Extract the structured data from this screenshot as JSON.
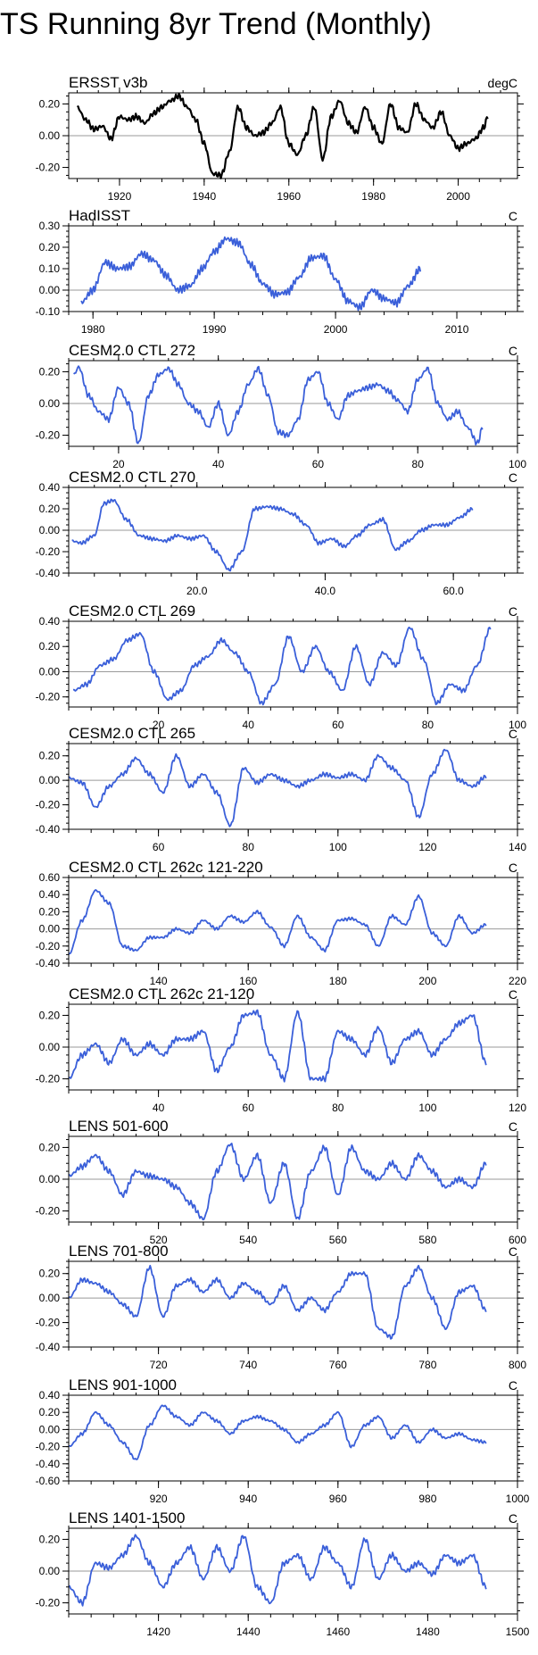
{
  "figure": {
    "title": "TS Running 8yr Trend (Monthly)"
  },
  "colors": {
    "obs_line": "#000000",
    "model_line": "#3a5fd9",
    "zero_line": "#999999",
    "frame": "#000000"
  },
  "chart_data": [
    {
      "type": "line",
      "title": "ERSST v3b",
      "units": "degC",
      "color": "obs",
      "xlim": [
        1908,
        2014
      ],
      "ylim": [
        -0.27,
        0.27
      ],
      "xticks": [
        1920,
        1940,
        1960,
        1980,
        2000
      ],
      "xtick_labels": [
        "1920",
        "1940",
        "1960",
        "1980",
        "2000"
      ],
      "yticks": [
        0.2,
        0.0,
        -0.2
      ],
      "ytick_labels": [
        "0.20",
        "0.00",
        "-0.20"
      ],
      "x_start": 1910,
      "x_end": 2007,
      "x": [
        1910,
        1912,
        1914,
        1916,
        1918,
        1920,
        1922,
        1924,
        1926,
        1928,
        1930,
        1932,
        1934,
        1936,
        1938,
        1940,
        1942,
        1944,
        1946,
        1948,
        1950,
        1952,
        1954,
        1956,
        1958,
        1960,
        1962,
        1964,
        1966,
        1968,
        1970,
        1972,
        1974,
        1976,
        1978,
        1980,
        1982,
        1984,
        1986,
        1988,
        1990,
        1992,
        1994,
        1996,
        1998,
        2000,
        2002,
        2004,
        2006,
        2007
      ],
      "y": [
        0.18,
        0.1,
        0.04,
        0.06,
        -0.02,
        0.12,
        0.1,
        0.12,
        0.08,
        0.14,
        0.18,
        0.22,
        0.25,
        0.18,
        0.1,
        -0.05,
        -0.24,
        -0.25,
        -0.1,
        0.18,
        0.05,
        0.0,
        0.02,
        0.08,
        0.18,
        -0.05,
        -0.12,
        0.0,
        0.18,
        -0.15,
        0.12,
        0.22,
        0.08,
        0.02,
        0.18,
        0.05,
        -0.05,
        0.2,
        0.05,
        0.02,
        0.2,
        0.1,
        0.05,
        0.15,
        0.0,
        -0.08,
        -0.05,
        -0.02,
        0.05,
        0.12
      ]
    },
    {
      "type": "line",
      "title": "HadISST",
      "units": "C",
      "color": "model",
      "xlim": [
        1978,
        2015
      ],
      "ylim": [
        -0.1,
        0.3
      ],
      "xticks": [
        1980,
        1990,
        2000,
        2010
      ],
      "xtick_labels": [
        "1980",
        "1990",
        "2000",
        "2010"
      ],
      "yticks": [
        0.3,
        0.2,
        0.1,
        0.0,
        -0.1
      ],
      "ytick_labels": [
        "0.30",
        "0.20",
        "0.10",
        "0.00",
        "-0.10"
      ],
      "x_start": 1979,
      "x_end": 2007,
      "x": [
        1979,
        1980,
        1981,
        1982,
        1983,
        1984,
        1985,
        1986,
        1987,
        1988,
        1989,
        1990,
        1991,
        1992,
        1993,
        1994,
        1995,
        1996,
        1997,
        1998,
        1999,
        2000,
        2001,
        2002,
        2003,
        2004,
        2005,
        2006,
        2007
      ],
      "y": [
        -0.06,
        0.0,
        0.13,
        0.1,
        0.11,
        0.17,
        0.14,
        0.07,
        0.0,
        0.02,
        0.1,
        0.18,
        0.24,
        0.22,
        0.12,
        0.03,
        -0.02,
        -0.01,
        0.06,
        0.15,
        0.16,
        0.05,
        -0.05,
        -0.08,
        0.0,
        -0.04,
        -0.06,
        0.02,
        0.1
      ]
    },
    {
      "type": "line",
      "title": "CESM2.0 CTL 272",
      "units": "C",
      "color": "model",
      "xlim": [
        10,
        100
      ],
      "ylim": [
        -0.27,
        0.27
      ],
      "xticks": [
        20,
        40,
        60,
        80,
        100
      ],
      "xtick_labels": [
        "20",
        "40",
        "60",
        "80",
        "100"
      ],
      "yticks": [
        0.2,
        0.0,
        -0.2
      ],
      "ytick_labels": [
        "0.20",
        "0.00",
        "-0.20"
      ],
      "x_start": 11,
      "x_end": 93,
      "x": [
        11,
        12,
        14,
        16,
        18,
        20,
        22,
        24,
        26,
        28,
        30,
        32,
        34,
        36,
        38,
        40,
        42,
        44,
        46,
        48,
        50,
        52,
        54,
        56,
        58,
        60,
        62,
        64,
        66,
        68,
        70,
        72,
        74,
        76,
        78,
        80,
        82,
        84,
        86,
        88,
        90,
        92,
        93
      ],
      "y": [
        0.18,
        0.23,
        0.05,
        -0.05,
        -0.1,
        0.1,
        0.0,
        -0.25,
        0.05,
        0.18,
        0.22,
        0.12,
        0.0,
        -0.05,
        -0.15,
        0.0,
        -0.2,
        -0.05,
        0.12,
        0.22,
        0.05,
        -0.18,
        -0.2,
        -0.1,
        0.15,
        0.2,
        0.0,
        -0.1,
        0.05,
        0.08,
        0.1,
        0.12,
        0.08,
        0.02,
        -0.05,
        0.15,
        0.22,
        0.0,
        -0.1,
        -0.05,
        -0.15,
        -0.25,
        -0.15
      ]
    },
    {
      "type": "line",
      "title": "CESM2.0 CTL 270",
      "units": "C",
      "color": "model",
      "xlim": [
        0,
        70
      ],
      "ylim": [
        -0.4,
        0.4
      ],
      "xticks": [
        20,
        40,
        60
      ],
      "xtick_labels": [
        "20.0",
        "40.0",
        "60.0"
      ],
      "yticks": [
        0.4,
        0.2,
        0.0,
        -0.2,
        -0.4
      ],
      "ytick_labels": [
        "0.40",
        "0.20",
        "0.00",
        "-0.20",
        "-0.40"
      ],
      "x_start": 0.5,
      "x_end": 63,
      "x": [
        0.5,
        2,
        4,
        5.5,
        7,
        9,
        11,
        13,
        15,
        17,
        19,
        21,
        23,
        25,
        27,
        29,
        31,
        33,
        35,
        37,
        39,
        41,
        43,
        45,
        47,
        49,
        51,
        53,
        55,
        57,
        59,
        61,
        63
      ],
      "y": [
        -0.1,
        -0.12,
        -0.05,
        0.25,
        0.28,
        0.1,
        -0.05,
        -0.08,
        -0.1,
        -0.05,
        -0.08,
        -0.05,
        -0.2,
        -0.37,
        -0.2,
        0.2,
        0.22,
        0.2,
        0.15,
        0.05,
        -0.12,
        -0.08,
        -0.15,
        -0.05,
        0.05,
        0.1,
        -0.18,
        -0.1,
        0.0,
        0.05,
        0.05,
        0.12,
        0.2
      ]
    },
    {
      "type": "line",
      "title": "CESM2.0 CTL 269",
      "units": "C",
      "color": "model",
      "xlim": [
        0,
        100
      ],
      "ylim": [
        -0.28,
        0.4
      ],
      "xticks": [
        20,
        40,
        60,
        80,
        100
      ],
      "xtick_labels": [
        "20",
        "40",
        "60",
        "80",
        "100"
      ],
      "yticks": [
        0.4,
        0.2,
        0.0,
        -0.2
      ],
      "ytick_labels": [
        "0.40",
        "0.20",
        "0.00",
        "-0.20"
      ],
      "x_start": 1,
      "x_end": 94,
      "x": [
        1,
        4,
        7,
        10,
        13,
        16,
        19,
        22,
        25,
        28,
        31,
        34,
        37,
        40,
        43,
        46,
        49,
        52,
        55,
        58,
        61,
        64,
        67,
        70,
        73,
        76,
        79,
        82,
        85,
        88,
        91,
        94
      ],
      "y": [
        -0.15,
        -0.1,
        0.05,
        0.1,
        0.25,
        0.3,
        0.0,
        -0.22,
        -0.15,
        0.05,
        0.12,
        0.25,
        0.15,
        0.0,
        -0.25,
        -0.1,
        0.28,
        0.0,
        0.2,
        0.0,
        -0.15,
        0.2,
        -0.1,
        0.15,
        0.05,
        0.35,
        0.1,
        -0.25,
        -0.1,
        -0.15,
        0.05,
        0.35
      ]
    },
    {
      "type": "line",
      "title": "CESM2.0 CTL 265",
      "units": "C",
      "color": "model",
      "xlim": [
        40,
        140
      ],
      "ylim": [
        -0.4,
        0.3
      ],
      "xticks": [
        60,
        80,
        100,
        120,
        140
      ],
      "xtick_labels": [
        "60",
        "80",
        "100",
        "120",
        "140"
      ],
      "yticks": [
        0.2,
        0.0,
        -0.2,
        -0.4
      ],
      "ytick_labels": [
        "0.20",
        "0.00",
        "-0.20",
        "-0.40"
      ],
      "x_start": 40,
      "x_end": 133,
      "x": [
        40,
        43,
        46,
        49,
        52,
        55,
        58,
        61,
        64,
        67,
        70,
        73,
        76,
        79,
        82,
        85,
        88,
        91,
        94,
        97,
        100,
        103,
        106,
        109,
        112,
        115,
        118,
        121,
        124,
        127,
        130,
        133
      ],
      "y": [
        0.02,
        -0.02,
        -0.22,
        -0.05,
        0.05,
        0.18,
        0.05,
        -0.1,
        0.2,
        -0.05,
        0.05,
        -0.1,
        -0.37,
        0.1,
        -0.02,
        0.05,
        0.0,
        -0.05,
        0.0,
        0.05,
        0.02,
        0.05,
        0.0,
        0.2,
        0.1,
        0.0,
        -0.3,
        0.05,
        0.25,
        0.0,
        -0.05,
        0.03
      ]
    },
    {
      "type": "line",
      "title": "CESM2.0 CTL 262c 121-220",
      "units": "C",
      "color": "model",
      "xlim": [
        120,
        220
      ],
      "ylim": [
        -0.4,
        0.6
      ],
      "xticks": [
        140,
        160,
        180,
        200,
        220
      ],
      "xtick_labels": [
        "140",
        "160",
        "180",
        "200",
        "220"
      ],
      "yticks": [
        0.6,
        0.4,
        0.2,
        0.0,
        -0.2,
        -0.4
      ],
      "ytick_labels": [
        "0.60",
        "0.40",
        "0.20",
        "0.00",
        "-0.20",
        "-0.40"
      ],
      "x_start": 120,
      "x_end": 213,
      "x": [
        120,
        123,
        126,
        129,
        132,
        135,
        138,
        141,
        144,
        147,
        150,
        153,
        156,
        159,
        162,
        165,
        168,
        171,
        174,
        177,
        180,
        183,
        186,
        189,
        192,
        195,
        198,
        201,
        204,
        207,
        210,
        213
      ],
      "y": [
        -0.3,
        0.1,
        0.45,
        0.3,
        -0.2,
        -0.25,
        -0.1,
        -0.1,
        0.0,
        -0.05,
        0.1,
        0.0,
        0.15,
        0.08,
        0.2,
        0.02,
        -0.2,
        0.15,
        -0.1,
        -0.25,
        0.1,
        0.12,
        0.05,
        -0.2,
        0.15,
        0.05,
        0.38,
        -0.05,
        -0.2,
        0.15,
        -0.05,
        0.05
      ]
    },
    {
      "type": "line",
      "title": "CESM2.0 CTL 262c 21-120",
      "units": "C",
      "color": "model",
      "xlim": [
        20,
        120
      ],
      "ylim": [
        -0.27,
        0.27
      ],
      "xticks": [
        40,
        60,
        80,
        100,
        120
      ],
      "xtick_labels": [
        "40",
        "60",
        "80",
        "100",
        "120"
      ],
      "yticks": [
        0.2,
        0.0,
        -0.2
      ],
      "ytick_labels": [
        "0.20",
        "0.00",
        "-0.20"
      ],
      "x_start": 20,
      "x_end": 113,
      "x": [
        20,
        23,
        26,
        29,
        32,
        35,
        38,
        41,
        44,
        47,
        50,
        53,
        56,
        59,
        62,
        65,
        68,
        71,
        74,
        77,
        80,
        83,
        86,
        89,
        92,
        95,
        98,
        101,
        104,
        107,
        110,
        113
      ],
      "y": [
        -0.2,
        -0.05,
        0.02,
        -0.1,
        0.05,
        -0.05,
        0.02,
        -0.05,
        0.05,
        0.05,
        0.1,
        -0.15,
        0.0,
        0.2,
        0.22,
        -0.05,
        -0.2,
        0.22,
        -0.2,
        -0.2,
        0.1,
        0.05,
        -0.05,
        0.12,
        -0.1,
        0.05,
        0.1,
        -0.05,
        0.05,
        0.15,
        0.2,
        -0.1
      ]
    },
    {
      "type": "line",
      "title": "LENS 501-600",
      "units": "C",
      "color": "model",
      "xlim": [
        500,
        600
      ],
      "ylim": [
        -0.27,
        0.27
      ],
      "xticks": [
        520,
        540,
        560,
        580,
        600
      ],
      "xtick_labels": [
        "520",
        "540",
        "560",
        "580",
        "600"
      ],
      "yticks": [
        0.2,
        0.0,
        -0.2
      ],
      "ytick_labels": [
        "0.20",
        "0.00",
        "-0.20"
      ],
      "x_start": 500,
      "x_end": 593,
      "x": [
        500,
        503,
        506,
        509,
        512,
        515,
        518,
        521,
        524,
        527,
        530,
        533,
        536,
        539,
        542,
        545,
        548,
        551,
        554,
        557,
        560,
        563,
        566,
        569,
        572,
        575,
        578,
        581,
        584,
        587,
        590,
        593
      ],
      "y": [
        0.02,
        0.08,
        0.15,
        0.05,
        -0.1,
        0.05,
        0.02,
        0.0,
        -0.05,
        -0.15,
        -0.25,
        0.05,
        0.22,
        0.0,
        0.15,
        -0.15,
        0.1,
        -0.25,
        0.05,
        0.2,
        -0.1,
        0.2,
        0.05,
        0.0,
        0.1,
        0.0,
        0.15,
        0.05,
        -0.05,
        0.0,
        -0.05,
        0.1
      ]
    },
    {
      "type": "line",
      "title": "LENS 701-800",
      "units": "C",
      "color": "model",
      "xlim": [
        700,
        800
      ],
      "ylim": [
        -0.4,
        0.3
      ],
      "xticks": [
        720,
        740,
        760,
        780,
        800
      ],
      "xtick_labels": [
        "720",
        "740",
        "760",
        "780",
        "800"
      ],
      "yticks": [
        0.2,
        0.0,
        -0.2,
        -0.4
      ],
      "ytick_labels": [
        "0.20",
        "0.00",
        "-0.20",
        "-0.40"
      ],
      "x_start": 700,
      "x_end": 793,
      "x": [
        700,
        703,
        706,
        709,
        712,
        715,
        718,
        721,
        724,
        727,
        730,
        733,
        736,
        739,
        742,
        745,
        748,
        751,
        754,
        757,
        760,
        763,
        766,
        769,
        772,
        775,
        778,
        781,
        784,
        787,
        790,
        793
      ],
      "y": [
        0.0,
        0.15,
        0.12,
        0.05,
        -0.05,
        -0.15,
        0.25,
        -0.15,
        0.1,
        0.15,
        0.05,
        0.15,
        0.0,
        0.12,
        0.05,
        -0.05,
        0.1,
        -0.1,
        0.0,
        -0.1,
        0.05,
        0.2,
        0.2,
        -0.25,
        -0.32,
        0.1,
        0.25,
        0.0,
        -0.25,
        0.05,
        0.1,
        -0.1
      ]
    },
    {
      "type": "line",
      "title": "LENS 901-1000",
      "units": "C",
      "color": "model",
      "xlim": [
        900,
        1000
      ],
      "ylim": [
        -0.6,
        0.4
      ],
      "xticks": [
        920,
        940,
        960,
        980,
        1000
      ],
      "xtick_labels": [
        "920",
        "940",
        "960",
        "980",
        "1000"
      ],
      "yticks": [
        0.4,
        0.2,
        0.0,
        -0.2,
        -0.4,
        -0.6
      ],
      "ytick_labels": [
        "0.40",
        "0.20",
        "0.00",
        "-0.20",
        "-0.40",
        "-0.60"
      ],
      "x_start": 900,
      "x_end": 993,
      "x": [
        900,
        903,
        906,
        909,
        912,
        915,
        918,
        921,
        924,
        927,
        930,
        933,
        936,
        939,
        942,
        945,
        948,
        951,
        954,
        957,
        960,
        963,
        966,
        969,
        972,
        975,
        978,
        981,
        984,
        987,
        990,
        993
      ],
      "y": [
        -0.2,
        -0.05,
        0.2,
        0.05,
        -0.15,
        -0.35,
        0.05,
        0.28,
        0.15,
        0.05,
        0.2,
        0.1,
        -0.05,
        0.1,
        0.15,
        0.1,
        0.0,
        -0.15,
        -0.05,
        0.05,
        0.2,
        -0.2,
        0.05,
        0.15,
        -0.1,
        0.05,
        -0.15,
        0.0,
        -0.1,
        -0.05,
        -0.12,
        -0.15
      ]
    },
    {
      "type": "line",
      "title": "LENS 1401-1500",
      "units": "C",
      "color": "model",
      "xlim": [
        1400,
        1500
      ],
      "ylim": [
        -0.27,
        0.27
      ],
      "xticks": [
        1420,
        1440,
        1460,
        1480,
        1500
      ],
      "xtick_labels": [
        "1420",
        "1440",
        "1460",
        "1480",
        "1500"
      ],
      "yticks": [
        0.2,
        0.0,
        -0.2
      ],
      "ytick_labels": [
        "0.20",
        "0.00",
        "-0.20"
      ],
      "x_start": 1400,
      "x_end": 1493,
      "x": [
        1400,
        1403,
        1406,
        1409,
        1412,
        1415,
        1418,
        1421,
        1424,
        1427,
        1430,
        1433,
        1436,
        1439,
        1442,
        1445,
        1448,
        1451,
        1454,
        1457,
        1460,
        1463,
        1466,
        1469,
        1472,
        1475,
        1478,
        1481,
        1484,
        1487,
        1490,
        1493
      ],
      "y": [
        -0.1,
        -0.2,
        0.05,
        0.02,
        0.1,
        0.22,
        0.05,
        -0.1,
        0.05,
        0.15,
        -0.05,
        0.15,
        0.0,
        0.22,
        -0.1,
        -0.2,
        0.05,
        0.1,
        -0.05,
        0.15,
        0.05,
        -0.1,
        0.2,
        -0.05,
        0.1,
        0.0,
        0.05,
        -0.02,
        0.1,
        0.05,
        0.1,
        -0.1
      ]
    }
  ]
}
